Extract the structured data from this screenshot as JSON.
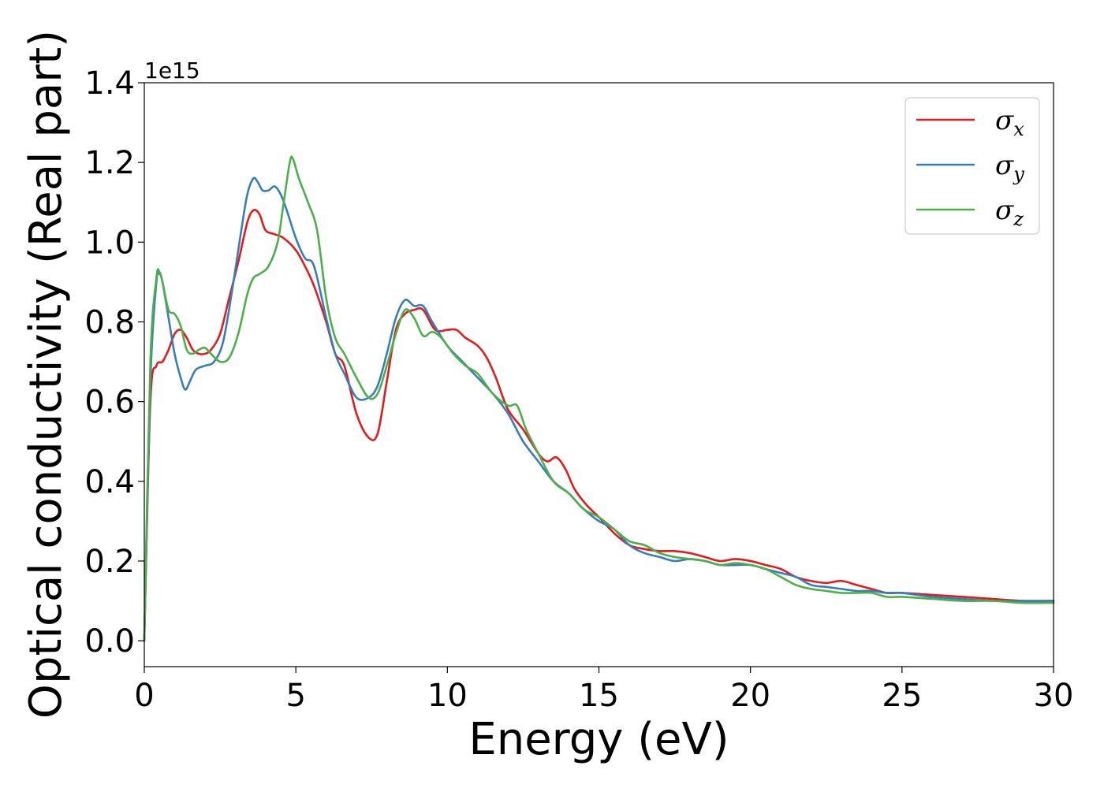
{
  "chart_data": {
    "type": "line",
    "title": "",
    "xlabel": "Energy (eV)",
    "ylabel": "Optical conductivity (Real part)",
    "y_offset_text": "1e15",
    "xlim": [
      0,
      30
    ],
    "ylim": [
      -0.065,
      1.4
    ],
    "xticks": [
      "0",
      "5",
      "10",
      "15",
      "20",
      "25",
      "30"
    ],
    "yticks": [
      "0.0",
      "0.2",
      "0.4",
      "0.6",
      "0.8",
      "1.0",
      "1.2",
      "1.4"
    ],
    "grid": false,
    "legend_position": "top-right",
    "series": [
      {
        "name": "σ",
        "subscript": "x",
        "color": "#e41a1c",
        "x": [
          0,
          0.2,
          0.4,
          0.6,
          0.8,
          1.0,
          1.2,
          1.4,
          1.6,
          1.8,
          2.0,
          2.2,
          2.5,
          2.8,
          3.1,
          3.4,
          3.6,
          3.8,
          4.0,
          4.3,
          4.6,
          5.0,
          5.3,
          5.6,
          6.0,
          6.3,
          6.6,
          7.0,
          7.4,
          7.7,
          8.0,
          8.3,
          8.6,
          8.9,
          9.2,
          9.6,
          10.0,
          10.3,
          10.6,
          11.0,
          11.3,
          11.6,
          12.0,
          12.5,
          13.0,
          13.3,
          13.6,
          13.9,
          14.2,
          14.6,
          15.0,
          15.5,
          16.0,
          16.5,
          17.0,
          17.5,
          18.0,
          18.5,
          19.0,
          19.5,
          20.0,
          20.5,
          21.0,
          21.5,
          22.0,
          22.5,
          23.0,
          23.5,
          24.0,
          24.5,
          25.0,
          26.0,
          27.0,
          28.0,
          29.0,
          30.0
        ],
        "values": [
          0.0,
          0.6,
          0.69,
          0.7,
          0.73,
          0.77,
          0.78,
          0.76,
          0.73,
          0.72,
          0.72,
          0.73,
          0.77,
          0.86,
          0.95,
          1.05,
          1.08,
          1.07,
          1.03,
          1.02,
          1.01,
          0.98,
          0.94,
          0.89,
          0.8,
          0.72,
          0.69,
          0.57,
          0.51,
          0.52,
          0.65,
          0.78,
          0.82,
          0.83,
          0.83,
          0.78,
          0.78,
          0.78,
          0.76,
          0.74,
          0.71,
          0.66,
          0.58,
          0.53,
          0.47,
          0.45,
          0.46,
          0.43,
          0.38,
          0.34,
          0.31,
          0.27,
          0.24,
          0.23,
          0.225,
          0.225,
          0.22,
          0.21,
          0.2,
          0.205,
          0.2,
          0.19,
          0.18,
          0.16,
          0.15,
          0.145,
          0.15,
          0.14,
          0.13,
          0.12,
          0.12,
          0.115,
          0.11,
          0.105,
          0.1,
          0.1
        ]
      },
      {
        "name": "σ",
        "subscript": "y",
        "color": "#377eb8",
        "x": [
          0,
          0.2,
          0.4,
          0.5,
          0.6,
          0.8,
          1.0,
          1.2,
          1.35,
          1.5,
          1.7,
          2.0,
          2.3,
          2.6,
          2.9,
          3.2,
          3.4,
          3.6,
          3.75,
          3.9,
          4.1,
          4.3,
          4.5,
          4.7,
          5.0,
          5.3,
          5.6,
          6.0,
          6.3,
          6.6,
          7.0,
          7.4,
          7.7,
          8.0,
          8.3,
          8.6,
          8.9,
          9.2,
          9.5,
          10.0,
          10.5,
          11.0,
          11.5,
          12.0,
          12.5,
          13.0,
          13.5,
          14.0,
          14.5,
          15.0,
          15.5,
          16.0,
          16.5,
          17.0,
          17.5,
          18.0,
          18.5,
          19.0,
          19.5,
          20.0,
          20.5,
          21.0,
          21.5,
          22.0,
          22.5,
          23.0,
          23.5,
          24.0,
          24.5,
          25.0,
          26.0,
          27.0,
          28.0,
          29.0,
          30.0
        ],
        "values": [
          0.0,
          0.65,
          0.9,
          0.92,
          0.9,
          0.81,
          0.72,
          0.66,
          0.63,
          0.65,
          0.68,
          0.69,
          0.7,
          0.75,
          0.88,
          1.03,
          1.12,
          1.16,
          1.15,
          1.13,
          1.13,
          1.14,
          1.12,
          1.08,
          1.01,
          0.96,
          0.94,
          0.81,
          0.72,
          0.67,
          0.61,
          0.61,
          0.64,
          0.72,
          0.81,
          0.855,
          0.84,
          0.84,
          0.8,
          0.74,
          0.7,
          0.66,
          0.62,
          0.57,
          0.5,
          0.45,
          0.4,
          0.37,
          0.33,
          0.3,
          0.28,
          0.24,
          0.22,
          0.21,
          0.2,
          0.205,
          0.2,
          0.19,
          0.19,
          0.19,
          0.18,
          0.17,
          0.16,
          0.14,
          0.135,
          0.13,
          0.125,
          0.125,
          0.12,
          0.12,
          0.11,
          0.105,
          0.1,
          0.1,
          0.1
        ]
      },
      {
        "name": "σ",
        "subscript": "z",
        "color": "#4daf4a",
        "x": [
          0,
          0.2,
          0.4,
          0.5,
          0.6,
          0.8,
          1.0,
          1.2,
          1.4,
          1.6,
          1.8,
          2.0,
          2.2,
          2.5,
          2.8,
          3.1,
          3.4,
          3.6,
          3.8,
          4.1,
          4.4,
          4.6,
          4.8,
          4.9,
          5.1,
          5.4,
          5.7,
          6.0,
          6.3,
          6.6,
          7.0,
          7.4,
          7.7,
          8.0,
          8.3,
          8.6,
          8.9,
          9.2,
          9.5,
          9.8,
          10.2,
          10.6,
          11.0,
          11.5,
          12.0,
          12.3,
          12.6,
          13.0,
          13.5,
          14.0,
          14.5,
          15.0,
          15.5,
          16.0,
          16.5,
          17.0,
          17.5,
          18.0,
          18.5,
          19.0,
          19.5,
          20.0,
          20.5,
          21.0,
          21.5,
          22.0,
          22.5,
          23.0,
          23.5,
          24.0,
          24.5,
          25.0,
          26.0,
          27.0,
          28.0,
          29.0,
          30.0
        ],
        "values": [
          0.0,
          0.7,
          0.91,
          0.925,
          0.9,
          0.83,
          0.82,
          0.79,
          0.73,
          0.72,
          0.73,
          0.735,
          0.72,
          0.7,
          0.71,
          0.77,
          0.87,
          0.91,
          0.92,
          0.94,
          1.0,
          1.1,
          1.2,
          1.21,
          1.16,
          1.1,
          1.03,
          0.86,
          0.76,
          0.72,
          0.66,
          0.61,
          0.62,
          0.69,
          0.77,
          0.83,
          0.81,
          0.765,
          0.775,
          0.76,
          0.72,
          0.69,
          0.67,
          0.62,
          0.59,
          0.59,
          0.53,
          0.47,
          0.4,
          0.37,
          0.33,
          0.31,
          0.28,
          0.25,
          0.24,
          0.22,
          0.21,
          0.205,
          0.2,
          0.19,
          0.195,
          0.19,
          0.18,
          0.16,
          0.14,
          0.13,
          0.125,
          0.12,
          0.12,
          0.12,
          0.11,
          0.11,
          0.105,
          0.1,
          0.1,
          0.095,
          0.095
        ]
      }
    ]
  }
}
